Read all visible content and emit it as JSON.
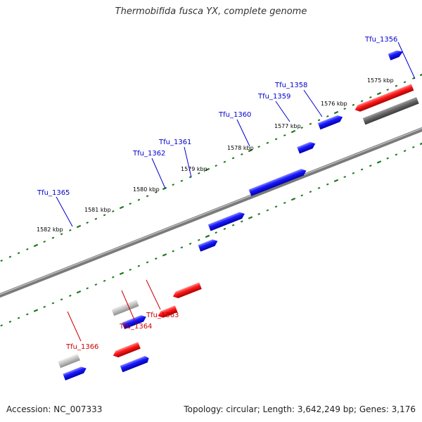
{
  "title": "Thermobifida fusca YX, complete genome",
  "accession": "Accession: NC_007333",
  "summary": "Topology: circular; Length: 3,642,249 bp; Genes: 3,176",
  "colors": {
    "forward": "#0000ee",
    "reverse": "#ee0000",
    "grey": "#bbbbbb",
    "darkgrey": "#666666",
    "axis": "#808080",
    "tick": "#1a7a1a",
    "forward_label": "#0000cc",
    "reverse_label": "#cc0000"
  },
  "scale": {
    "unit": "kbp",
    "ticks": [
      {
        "label": "1575 kbp",
        "kbp": 1575
      },
      {
        "label": "1576 kbp",
        "kbp": 1576
      },
      {
        "label": "1577 kbp",
        "kbp": 1577
      },
      {
        "label": "1578 kbp",
        "kbp": 1578
      },
      {
        "label": "1579 kbp",
        "kbp": 1579
      },
      {
        "label": "1580 kbp",
        "kbp": 1580
      },
      {
        "label": "1581 kbp",
        "kbp": 1581
      },
      {
        "label": "1582 kbp",
        "kbp": 1582
      }
    ]
  },
  "genes": [
    {
      "id": "Tfu_1356",
      "strand": "+"
    },
    {
      "id": "Tfu_1358",
      "strand": "+"
    },
    {
      "id": "Tfu_1359",
      "strand": "+"
    },
    {
      "id": "Tfu_1360",
      "strand": "+"
    },
    {
      "id": "Tfu_1361",
      "strand": "+"
    },
    {
      "id": "Tfu_1362",
      "strand": "+"
    },
    {
      "id": "Tfu_1363",
      "strand": "-"
    },
    {
      "id": "Tfu_1364",
      "strand": "-"
    },
    {
      "id": "Tfu_1365",
      "strand": "+"
    },
    {
      "id": "Tfu_1366",
      "strand": "-"
    }
  ]
}
